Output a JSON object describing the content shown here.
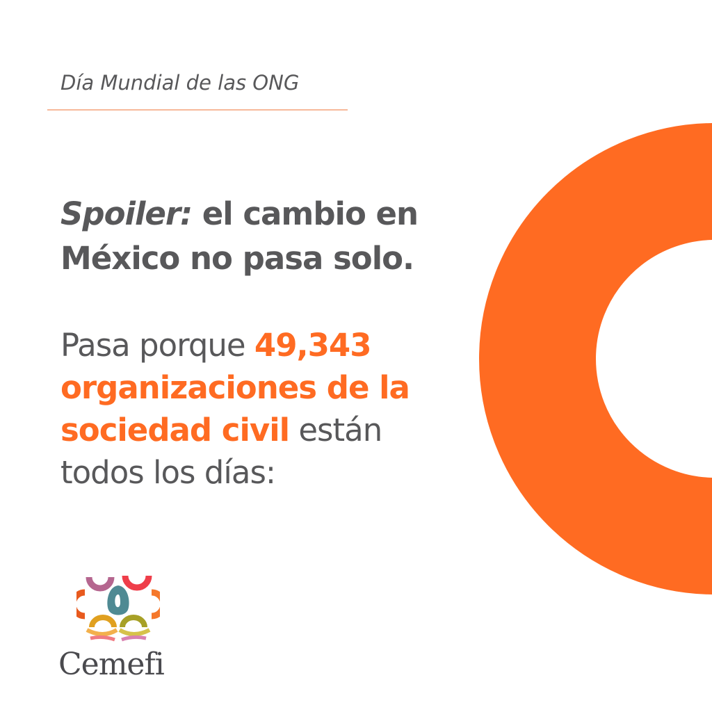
{
  "kicker": "Día Mundial de las ONG",
  "headline": {
    "italic": "Spoiler:",
    "line1_rest": " el cambio en",
    "line2": "México no pasa solo."
  },
  "body": {
    "p1": "Pasa porque ",
    "number": "49,343",
    "highlight1": "organizaciones de la",
    "highlight2": "sociedad civil",
    "p2": " están",
    "p3": "todos los días:"
  },
  "brand": {
    "name": "Cemefi"
  },
  "colors": {
    "accent": "#ff6b22",
    "text": "#58585a",
    "rule": "#f7b99a"
  }
}
